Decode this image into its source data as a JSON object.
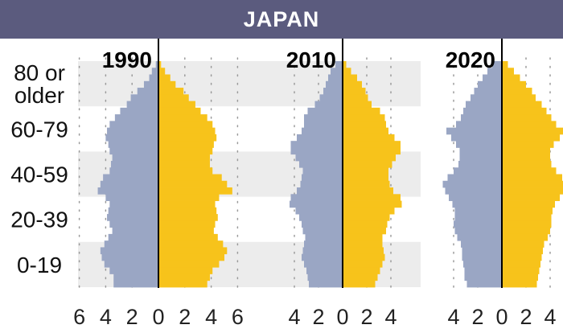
{
  "header": {
    "title": "JAPAN"
  },
  "colors": {
    "header_bg": "#5b5b7e",
    "band": "#ececec",
    "left_bars": "#9aa6c4",
    "right_bars": "#f7c31b",
    "axis": "#000000",
    "grid": "#9a9a9a"
  },
  "chart_data": {
    "type": "bar",
    "orientation": "horizontal-population-pyramid",
    "title": "JAPAN",
    "age_groups": [
      "80 or older",
      "60-79",
      "40-59",
      "20-39",
      "0-19"
    ],
    "age_label_lines": [
      [
        "80 or",
        "older"
      ],
      [
        "60-79"
      ],
      [
        "40-59"
      ],
      [
        "20-39"
      ],
      [
        "0-19"
      ]
    ],
    "grid": "dotted vertical",
    "panels": [
      {
        "year": "1990",
        "xlim": [
          -6,
          6
        ],
        "ticks": [
          -6,
          -4,
          -2,
          0,
          2,
          4,
          6
        ],
        "tick_labels": [
          "6",
          "4",
          "2",
          "0",
          "2",
          "4",
          "6"
        ],
        "left_values": [
          0.2,
          0.5,
          0.7,
          1.1,
          1.6,
          2.1,
          2.4,
          2.9,
          3.3,
          3.7,
          3.9,
          4.0,
          3.8,
          3.7,
          3.5,
          3.6,
          3.7,
          4.2,
          4.4,
          4.6,
          4.0,
          3.7,
          3.8,
          3.9,
          3.7,
          3.5,
          3.8,
          4.1,
          4.4,
          4.3,
          4.1,
          3.7,
          3.4,
          3.4
        ],
        "right_values": [
          0.2,
          0.5,
          0.9,
          1.3,
          1.9,
          2.3,
          2.8,
          3.2,
          3.7,
          4.1,
          4.3,
          4.4,
          4.2,
          4.1,
          3.9,
          3.9,
          4.1,
          4.8,
          5.2,
          5.6,
          4.6,
          4.3,
          4.4,
          4.5,
          4.3,
          4.2,
          4.5,
          4.9,
          5.2,
          5.0,
          4.6,
          4.1,
          3.9,
          3.7
        ]
      },
      {
        "year": "2010",
        "xlim": [
          -5,
          5
        ],
        "ticks": [
          -4,
          -2,
          0,
          2,
          4
        ],
        "tick_labels": [
          "4",
          "2",
          "0",
          "2",
          "4"
        ],
        "left_values": [
          0.6,
          1.0,
          1.2,
          1.4,
          1.6,
          1.9,
          2.3,
          2.9,
          3.2,
          3.2,
          3.4,
          3.8,
          4.3,
          4.3,
          3.9,
          3.6,
          3.3,
          3.4,
          3.5,
          3.8,
          4.3,
          4.4,
          3.9,
          3.6,
          3.4,
          3.3,
          3.1,
          3.2,
          3.3,
          3.4,
          3.2,
          3.0,
          2.9,
          2.8
        ],
        "right_values": [
          0.3,
          0.7,
          1.2,
          1.6,
          1.9,
          2.1,
          2.4,
          3.1,
          3.5,
          3.6,
          3.8,
          4.3,
          4.8,
          4.8,
          4.4,
          4.1,
          3.8,
          3.8,
          3.9,
          4.2,
          4.8,
          4.9,
          4.3,
          3.9,
          3.7,
          3.6,
          3.3,
          3.3,
          3.4,
          3.5,
          3.3,
          3.1,
          2.9,
          2.7
        ]
      },
      {
        "year": "2020",
        "xlim": [
          -5,
          5
        ],
        "ticks": [
          -4,
          -2,
          0,
          2,
          4
        ],
        "tick_labels": [
          "4",
          "2",
          "0",
          "2",
          "4"
        ],
        "left_values": [
          0.8,
          1.2,
          1.6,
          2.0,
          2.3,
          2.6,
          3.0,
          3.2,
          3.4,
          3.8,
          4.6,
          4.2,
          3.8,
          3.5,
          3.5,
          3.6,
          4.0,
          4.5,
          4.9,
          4.7,
          4.4,
          4.1,
          3.9,
          3.9,
          4.0,
          3.9,
          3.7,
          3.4,
          3.3,
          3.3,
          3.2,
          3.1,
          3.1,
          2.9
        ],
        "right_values": [
          0.5,
          1.0,
          1.5,
          2.0,
          2.5,
          2.8,
          3.3,
          3.7,
          4.1,
          4.5,
          5.2,
          4.8,
          4.3,
          4.0,
          4.0,
          4.1,
          4.5,
          5.0,
          5.4,
          5.2,
          4.8,
          4.4,
          4.2,
          4.1,
          4.1,
          4.0,
          3.8,
          3.5,
          3.4,
          3.3,
          3.2,
          3.1,
          3.0,
          2.9
        ]
      }
    ]
  }
}
